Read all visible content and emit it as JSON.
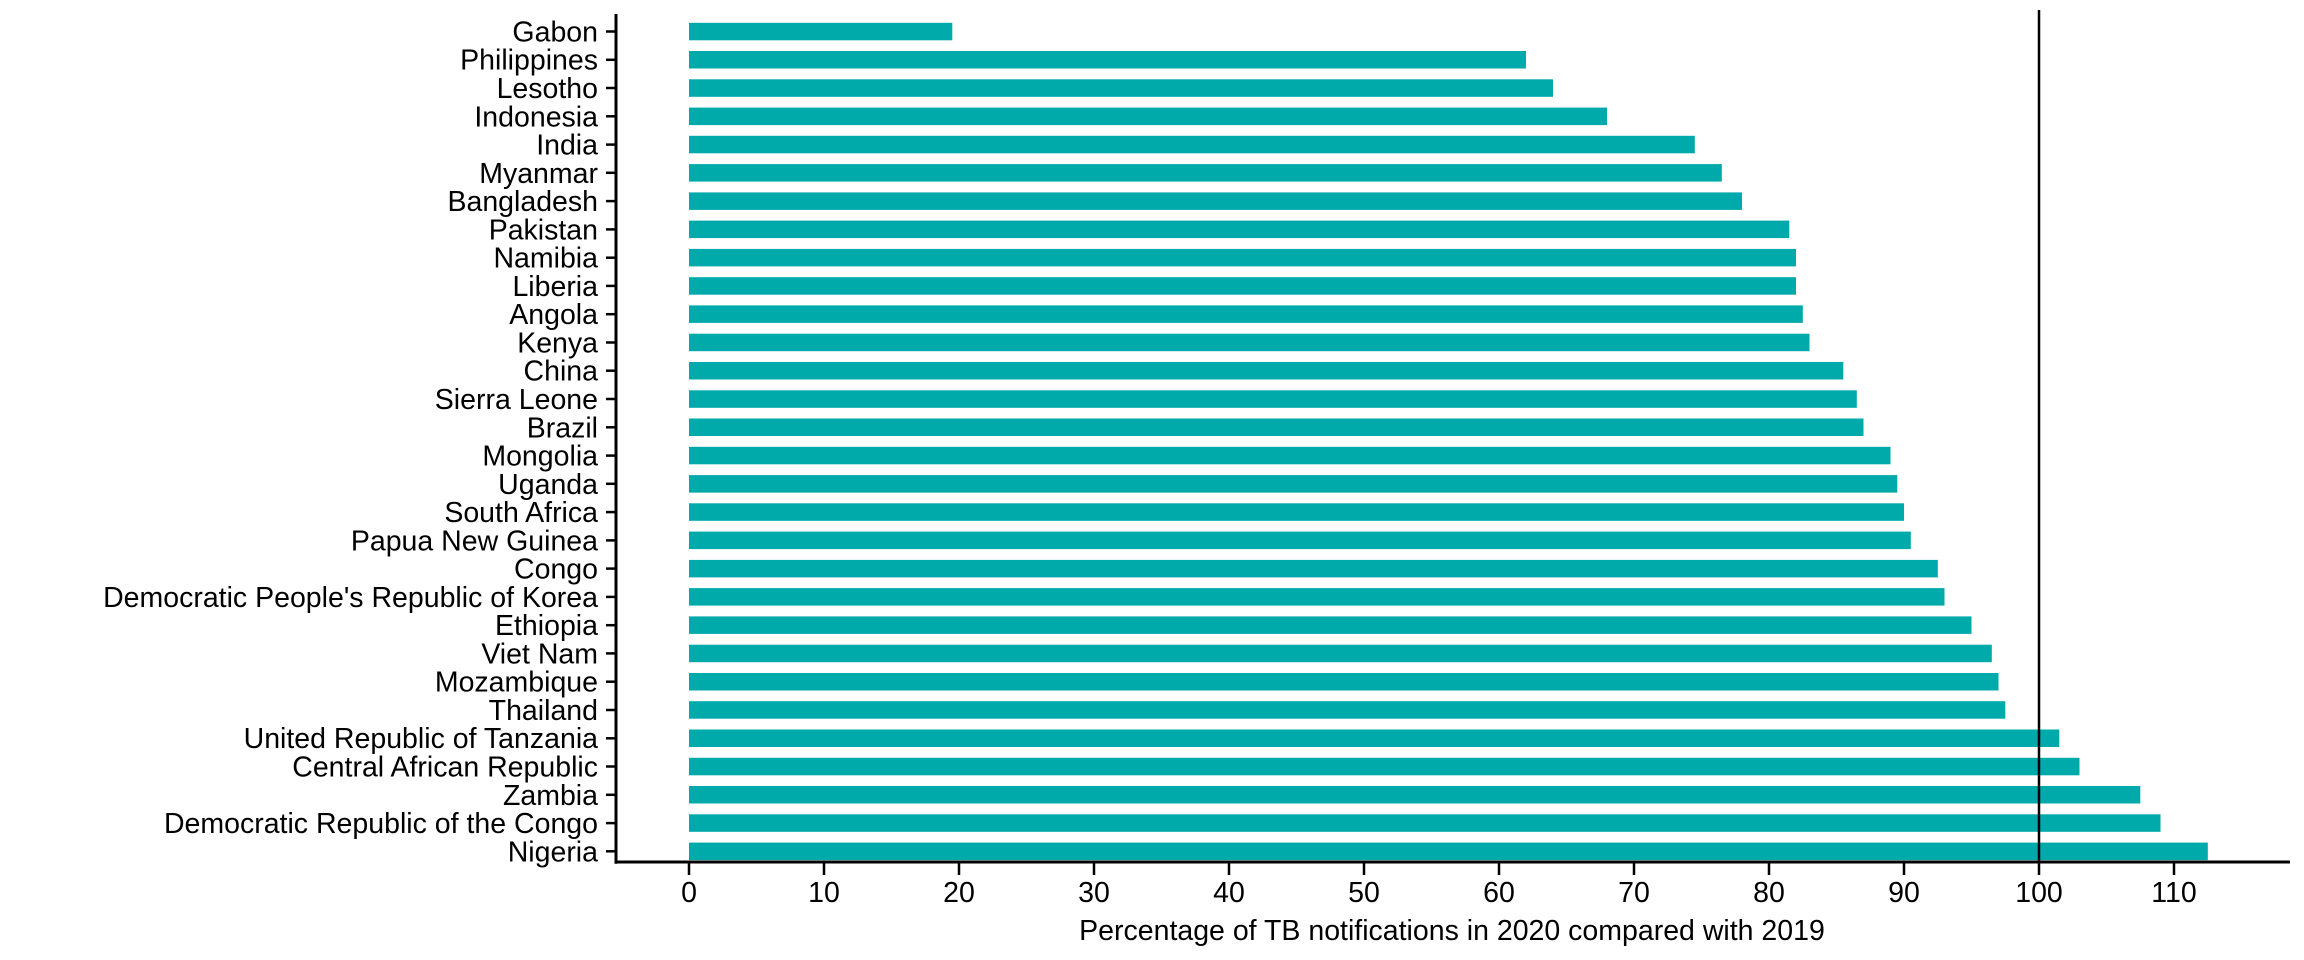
{
  "chart_data": {
    "type": "bar",
    "orientation": "horizontal",
    "title": "",
    "xlabel": "Percentage of TB notifications in 2020 compared with 2019",
    "ylabel": "",
    "xlim": [
      0,
      118
    ],
    "x_ticks": [
      0,
      10,
      20,
      30,
      40,
      50,
      60,
      70,
      80,
      90,
      100,
      110
    ],
    "reference_line_x": 100,
    "grid": false,
    "legend": false,
    "bar_color": "#00A9AA",
    "axis_color": "#000000",
    "background_color": "#ffffff",
    "categories": [
      "Gabon",
      "Philippines",
      "Lesotho",
      "Indonesia",
      "India",
      "Myanmar",
      "Bangladesh",
      "Pakistan",
      "Namibia",
      "Liberia",
      "Angola",
      "Kenya",
      "China",
      "Sierra Leone",
      "Brazil",
      "Mongolia",
      "Uganda",
      "South Africa",
      "Papua New Guinea",
      "Congo",
      "Democratic People's Republic of Korea",
      "Ethiopia",
      "Viet Nam",
      "Mozambique",
      "Thailand",
      "United Republic of Tanzania",
      "Central African Republic",
      "Zambia",
      "Democratic Republic of the Congo",
      "Nigeria"
    ],
    "values": [
      19.5,
      62,
      64,
      68,
      74.5,
      76.5,
      78,
      81.5,
      82,
      82,
      82.5,
      83,
      85.5,
      86.5,
      87,
      89,
      89.5,
      90,
      90.5,
      92.5,
      93,
      95,
      96.5,
      97,
      97.5,
      101.5,
      103,
      107.5,
      109,
      112.5
    ]
  }
}
